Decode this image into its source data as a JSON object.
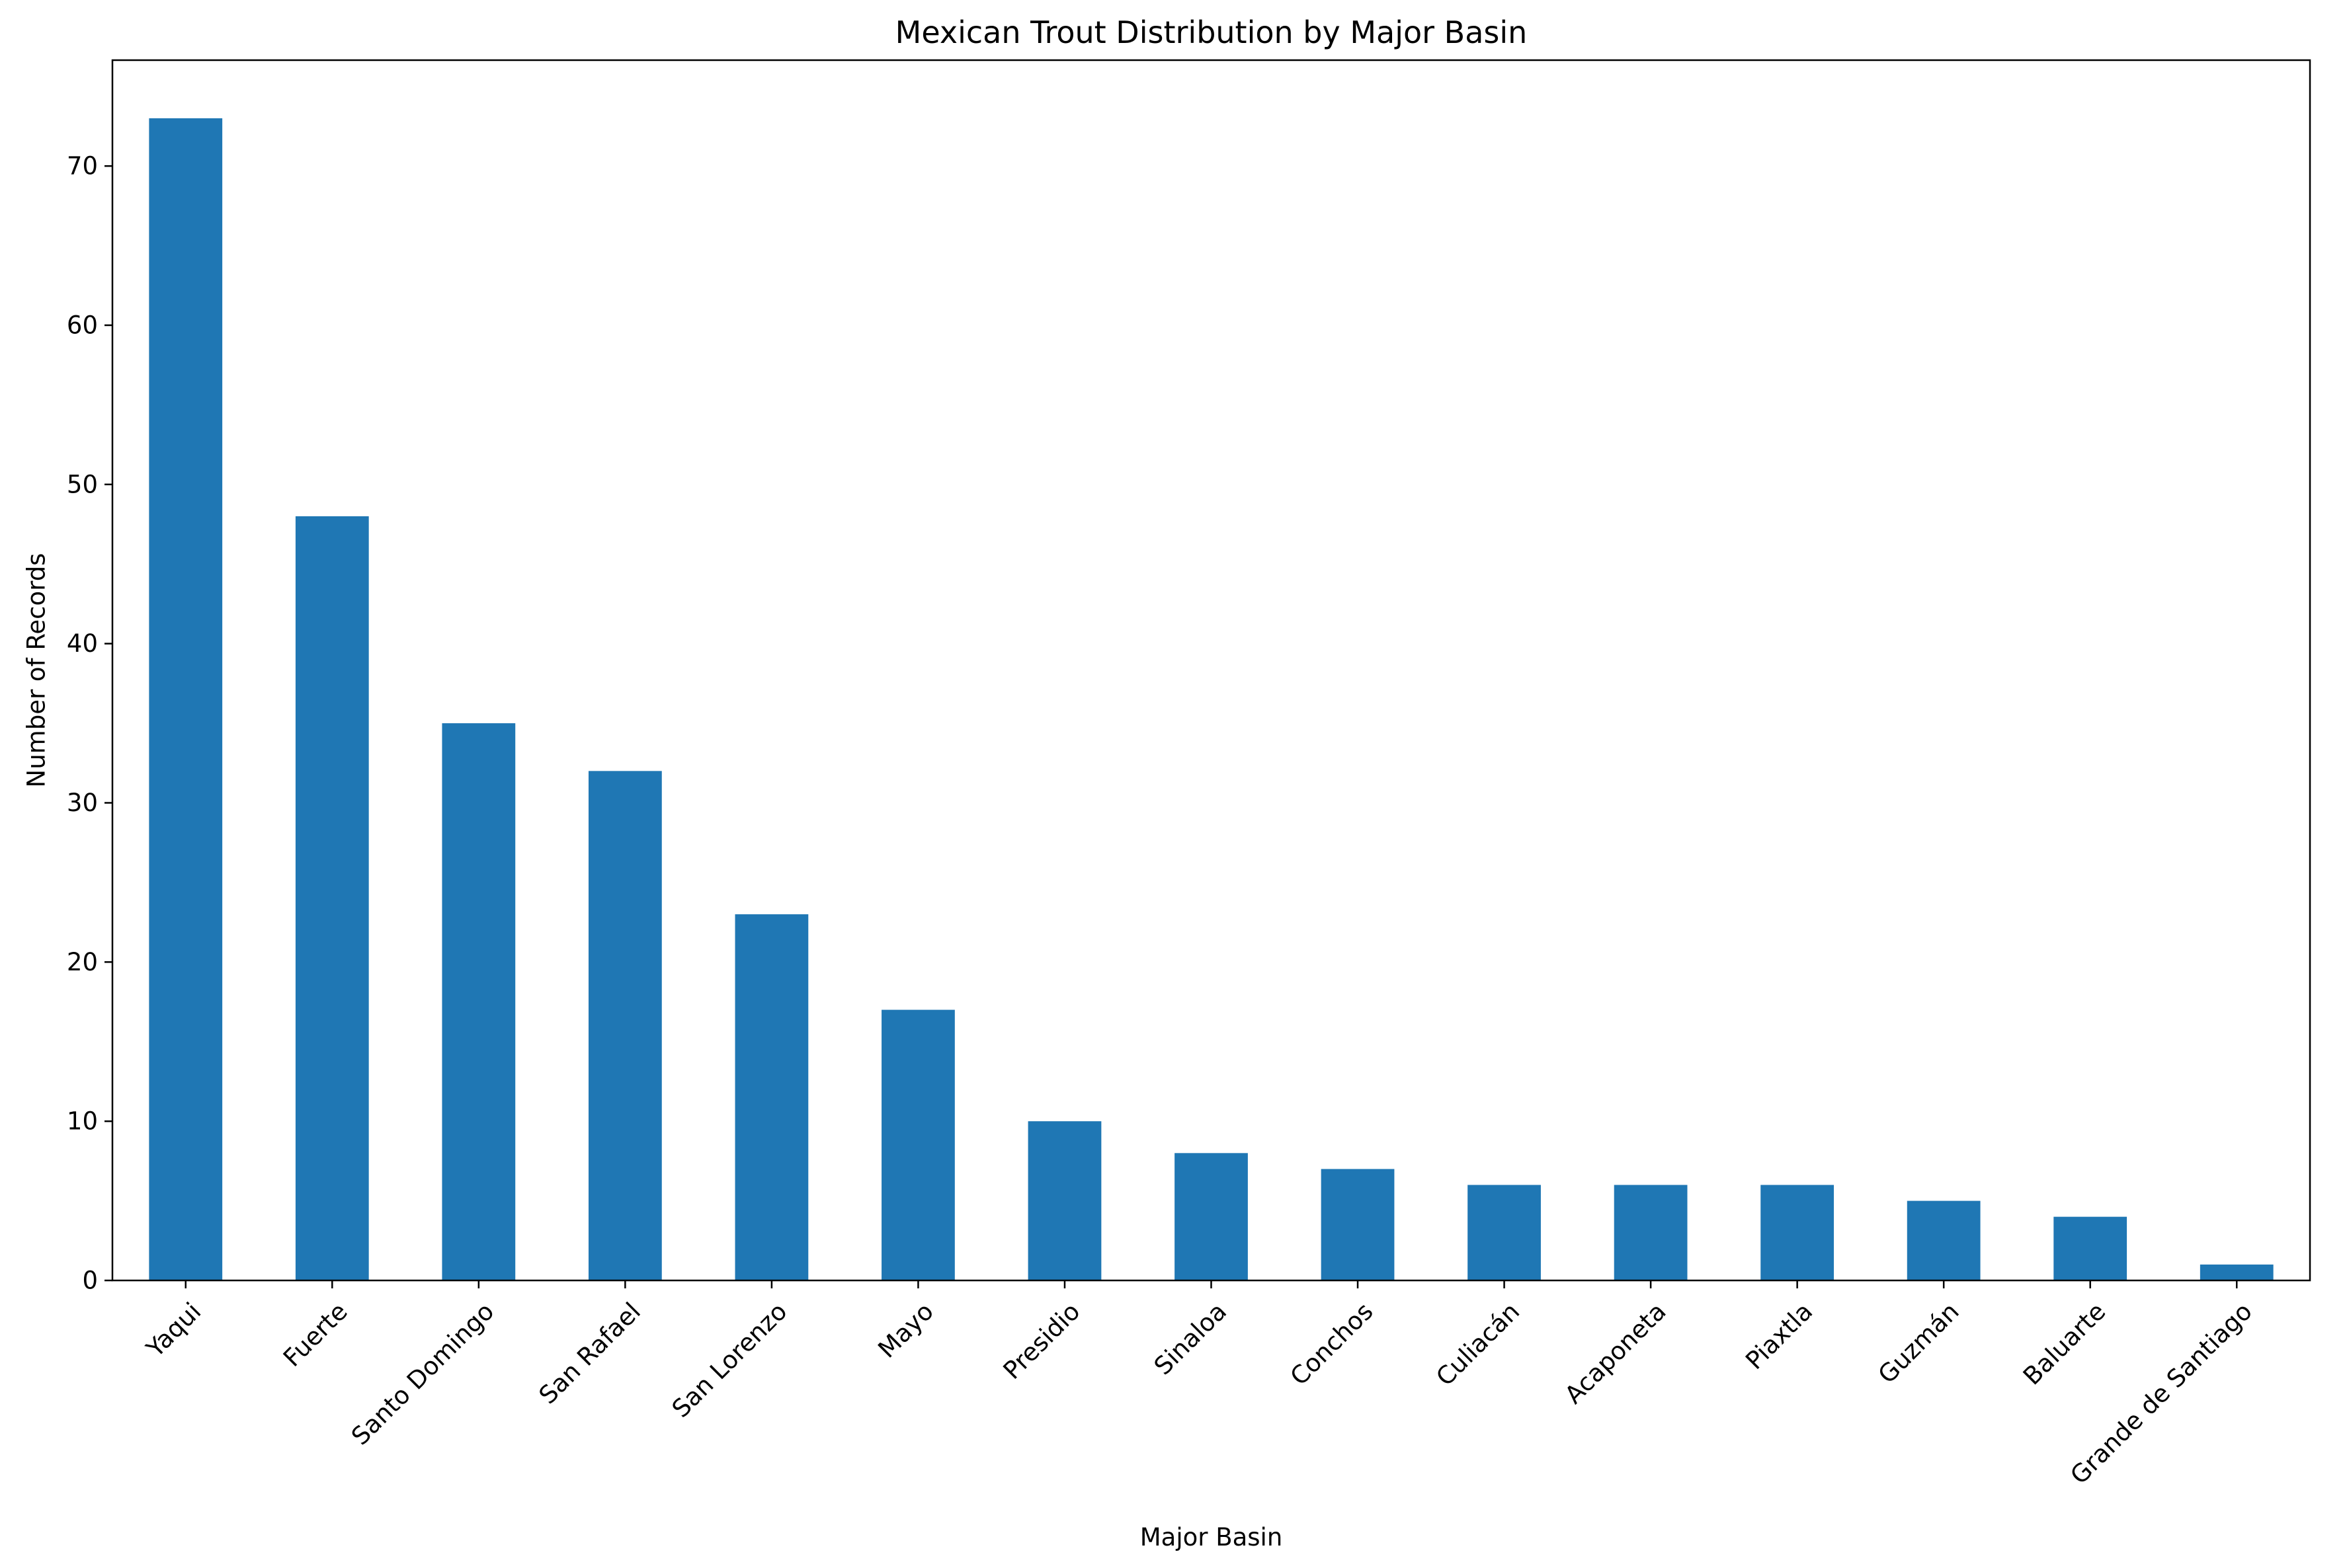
{
  "chart_data": {
    "type": "bar",
    "title": "Mexican Trout Distribution by Major Basin",
    "xlabel": "Major Basin",
    "ylabel": "Number of Records",
    "categories": [
      "Yaqui",
      "Fuerte",
      "Santo Domingo",
      "San Rafael",
      "San Lorenzo",
      "Mayo",
      "Presidio",
      "Sinaloa",
      "Conchos",
      "Culiacán",
      "Acaponeta",
      "Piaxtla",
      "Guzmán",
      "Baluarte",
      "Grande de Santiago"
    ],
    "values": [
      73,
      48,
      35,
      32,
      23,
      17,
      10,
      8,
      7,
      6,
      6,
      6,
      5,
      4,
      1
    ],
    "ylim": [
      0,
      76.65
    ],
    "yticks": [
      0,
      10,
      20,
      30,
      40,
      50,
      60,
      70
    ],
    "grid": false,
    "legend": false,
    "bar_color": "#1f77b4"
  }
}
